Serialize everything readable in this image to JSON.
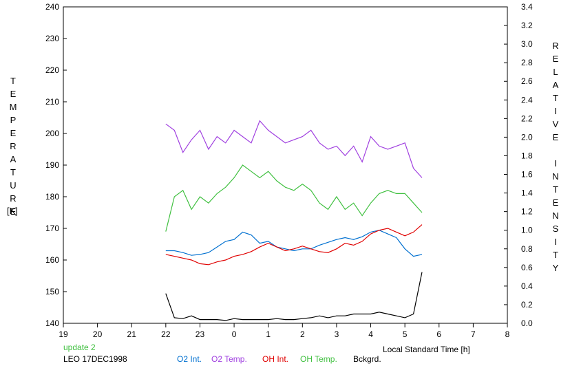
{
  "chart_data": {
    "type": "line",
    "left_axis": {
      "label": "TEMPERATURE",
      "unit": "[K]",
      "range": [
        140,
        240
      ],
      "ticks": [
        140,
        150,
        160,
        170,
        180,
        190,
        200,
        210,
        220,
        230,
        240
      ]
    },
    "right_axis": {
      "label": "RELATIVE INTENSITY",
      "range": [
        0.0,
        3.4
      ],
      "ticks": [
        "0.0",
        "0.2",
        "0.4",
        "0.6",
        "0.8",
        "1.0",
        "1.2",
        "1.4",
        "1.6",
        "1.8",
        "2.0",
        "2.2",
        "2.4",
        "2.6",
        "2.8",
        "3.0",
        "3.2",
        "3.4"
      ]
    },
    "x_axis": {
      "label": "Local Standard Time [h]",
      "ticks": [
        "19",
        "20",
        "21",
        "22",
        "23",
        "0",
        "1",
        "2",
        "3",
        "4",
        "5",
        "6",
        "7",
        "8"
      ]
    },
    "update_text": "update 2",
    "station_text": "LEO 17DEC1998",
    "x": [
      22.0,
      22.25,
      22.5,
      22.75,
      23.0,
      23.25,
      23.5,
      23.75,
      24.0,
      24.25,
      24.5,
      24.75,
      25.0,
      25.25,
      25.5,
      25.75,
      26.0,
      26.25,
      26.5,
      26.75,
      27.0,
      27.25,
      27.5,
      27.75,
      28.0,
      28.25,
      28.5,
      28.75,
      29.0,
      29.25,
      29.5
    ],
    "series": [
      {
        "name": "O2 Int.",
        "color": "#0070d0",
        "axis": "right",
        "values": [
          0.78,
          0.78,
          0.76,
          0.73,
          0.74,
          0.76,
          0.82,
          0.88,
          0.9,
          0.98,
          0.95,
          0.86,
          0.88,
          0.82,
          0.8,
          0.78,
          0.8,
          0.8,
          0.84,
          0.87,
          0.9,
          0.92,
          0.9,
          0.93,
          0.98,
          1.0,
          0.96,
          0.92,
          0.8,
          0.72,
          0.74
        ]
      },
      {
        "name": "O2 Temp.",
        "color": "#a040e0",
        "axis": "left",
        "values": [
          203,
          201,
          194,
          198,
          201,
          195,
          199,
          197,
          201,
          199,
          197,
          204,
          201,
          199,
          197,
          198,
          199,
          201,
          197,
          195,
          196,
          193,
          196,
          191,
          199,
          196,
          195,
          196,
          197,
          189,
          186
        ]
      },
      {
        "name": "OH Int.",
        "color": "#e00000",
        "axis": "right",
        "values": [
          0.74,
          0.72,
          0.7,
          0.68,
          0.64,
          0.63,
          0.66,
          0.68,
          0.72,
          0.74,
          0.77,
          0.82,
          0.86,
          0.82,
          0.78,
          0.8,
          0.83,
          0.8,
          0.77,
          0.76,
          0.8,
          0.86,
          0.84,
          0.88,
          0.96,
          1.0,
          1.02,
          0.98,
          0.94,
          0.98,
          1.06
        ]
      },
      {
        "name": "OH Temp.",
        "color": "#40c040",
        "axis": "left",
        "values": [
          169,
          180,
          182,
          176,
          180,
          178,
          181,
          183,
          186,
          190,
          188,
          186,
          188,
          185,
          183,
          182,
          184,
          182,
          178,
          176,
          180,
          176,
          178,
          174,
          178,
          181,
          182,
          181,
          181,
          178,
          175
        ]
      },
      {
        "name": "Bckgrd.",
        "color": "#000000",
        "axis": "right",
        "values": [
          0.32,
          0.06,
          0.05,
          0.08,
          0.04,
          0.04,
          0.04,
          0.03,
          0.05,
          0.04,
          0.04,
          0.04,
          0.04,
          0.05,
          0.04,
          0.04,
          0.05,
          0.06,
          0.08,
          0.06,
          0.08,
          0.08,
          0.1,
          0.1,
          0.1,
          0.12,
          0.1,
          0.08,
          0.06,
          0.1,
          0.55
        ]
      }
    ]
  }
}
